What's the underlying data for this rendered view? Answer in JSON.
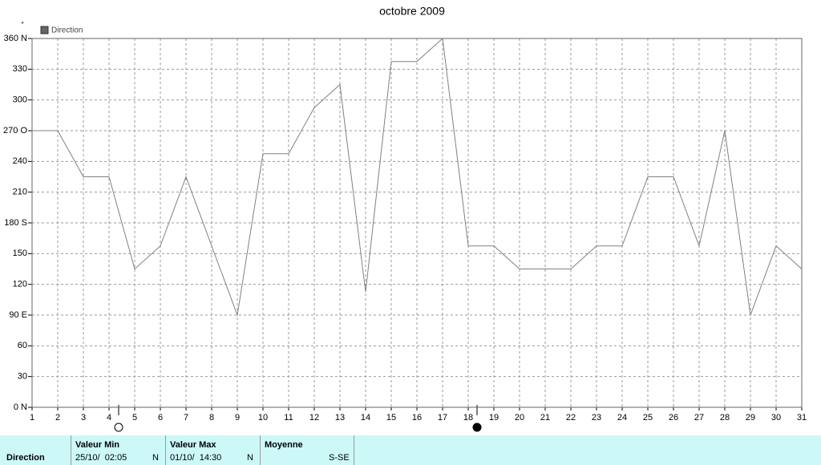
{
  "chart_data": {
    "type": "line",
    "title": "octobre 2009",
    "y_label": "°",
    "x": [
      1,
      2,
      3,
      4,
      5,
      6,
      7,
      8,
      9,
      10,
      11,
      12,
      13,
      14,
      15,
      16,
      17,
      18,
      19,
      20,
      21,
      22,
      23,
      24,
      25,
      26,
      27,
      28,
      29,
      30,
      31
    ],
    "series": [
      {
        "name": "Direction",
        "color": "#808080",
        "values": [
          270,
          270,
          225,
          225,
          135,
          157.5,
          225,
          157.5,
          90,
          247.5,
          247.5,
          292.5,
          315,
          112.5,
          337.5,
          337.5,
          360,
          157.5,
          157.5,
          135,
          135,
          135,
          157.5,
          157.5,
          225,
          225,
          157.5,
          270,
          90,
          157.5,
          135
        ]
      }
    ],
    "xlim": [
      1,
      31
    ],
    "xticks": [
      1,
      2,
      3,
      4,
      5,
      6,
      7,
      8,
      9,
      10,
      11,
      12,
      13,
      14,
      15,
      16,
      17,
      18,
      19,
      20,
      21,
      22,
      23,
      24,
      25,
      26,
      27,
      28,
      29,
      30,
      31
    ],
    "ylim": [
      0,
      360
    ],
    "yticks": [
      {
        "value": 0,
        "label": "0  N"
      },
      30,
      60,
      {
        "value": 90,
        "label": "90  E"
      },
      120,
      150,
      {
        "value": 180,
        "label": "180 S"
      },
      210,
      240,
      {
        "value": 270,
        "label": "270 O"
      },
      300,
      330,
      {
        "value": 360,
        "label": "360 N"
      }
    ],
    "grid": true,
    "legend": "top-left"
  },
  "stats": {
    "row_label": "Direction",
    "min": {
      "header": "Valeur Min",
      "date": "25/10/  02:05",
      "dir": "N"
    },
    "max": {
      "header": "Valeur Max",
      "date": "01/10/  14:30",
      "dir": "N"
    },
    "mean": {
      "header": "Moyenne",
      "dir": "S-SE"
    }
  }
}
